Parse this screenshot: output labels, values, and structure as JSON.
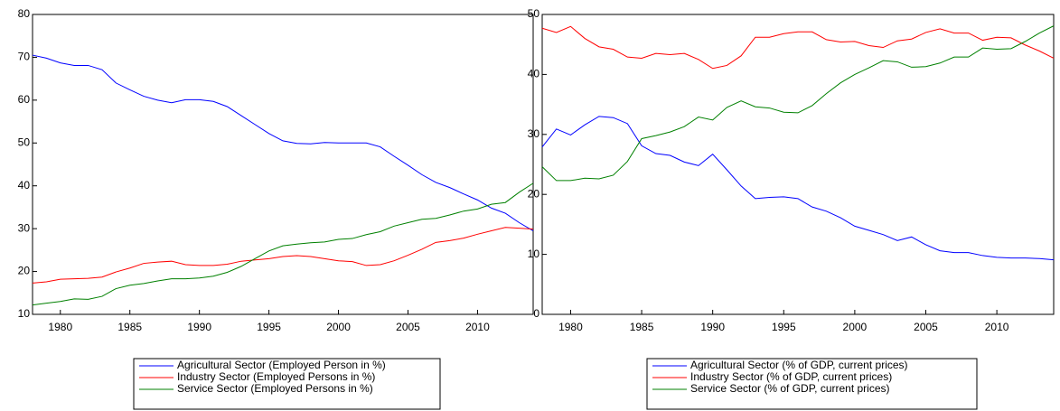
{
  "chart_data": [
    {
      "type": "line",
      "x": [
        1978,
        1979,
        1980,
        1981,
        1982,
        1983,
        1984,
        1985,
        1986,
        1987,
        1988,
        1989,
        1990,
        1991,
        1992,
        1993,
        1994,
        1995,
        1996,
        1997,
        1998,
        1999,
        2000,
        2001,
        2002,
        2003,
        2004,
        2005,
        2006,
        2007,
        2008,
        2009,
        2010,
        2011,
        2012,
        2013,
        2014
      ],
      "xlim": [
        1978,
        2014
      ],
      "xticks": [
        1980,
        1985,
        1990,
        1995,
        2000,
        2005,
        2010
      ],
      "ylim": [
        10,
        80
      ],
      "yticks": [
        10,
        20,
        30,
        40,
        50,
        60,
        70,
        80
      ],
      "series": [
        {
          "name": "Agricultural Sector (Employed Person in %)",
          "color": "#0000ff",
          "values": [
            70.5,
            69.8,
            68.7,
            68.1,
            68.1,
            67.1,
            64.0,
            62.4,
            60.9,
            60.0,
            59.4,
            60.1,
            60.1,
            59.7,
            58.5,
            56.4,
            54.3,
            52.2,
            50.5,
            49.9,
            49.8,
            50.1,
            50.0,
            50.0,
            50.0,
            49.1,
            46.9,
            44.8,
            42.6,
            40.8,
            39.6,
            38.1,
            36.7,
            34.8,
            33.6,
            31.4,
            29.5
          ]
        },
        {
          "name": "Industry Sector (Employed Persons in %)",
          "color": "#ff0000",
          "values": [
            17.3,
            17.6,
            18.2,
            18.3,
            18.4,
            18.7,
            19.9,
            20.8,
            21.9,
            22.2,
            22.4,
            21.6,
            21.4,
            21.4,
            21.7,
            22.4,
            22.7,
            23.0,
            23.5,
            23.7,
            23.5,
            23.0,
            22.5,
            22.3,
            21.4,
            21.6,
            22.5,
            23.8,
            25.2,
            26.8,
            27.2,
            27.8,
            28.7,
            29.5,
            30.3,
            30.1,
            29.9
          ]
        },
        {
          "name": "Service Sector (Employed Persons in %)",
          "color": "#008000",
          "values": [
            12.2,
            12.6,
            13.0,
            13.6,
            13.5,
            14.2,
            16.0,
            16.8,
            17.2,
            17.8,
            18.3,
            18.3,
            18.5,
            18.9,
            19.8,
            21.2,
            23.0,
            24.8,
            26.0,
            26.4,
            26.7,
            26.9,
            27.5,
            27.7,
            28.6,
            29.3,
            30.6,
            31.4,
            32.2,
            32.4,
            33.2,
            34.1,
            34.6,
            35.7,
            36.1,
            38.5,
            40.6
          ]
        }
      ]
    },
    {
      "type": "line",
      "x": [
        1978,
        1979,
        1980,
        1981,
        1982,
        1983,
        1984,
        1985,
        1986,
        1987,
        1988,
        1989,
        1990,
        1991,
        1992,
        1993,
        1994,
        1995,
        1996,
        1997,
        1998,
        1999,
        2000,
        2001,
        2002,
        2003,
        2004,
        2005,
        2006,
        2007,
        2008,
        2009,
        2010,
        2011,
        2012,
        2013,
        2014
      ],
      "xlim": [
        1978,
        2014
      ],
      "xticks": [
        1980,
        1985,
        1990,
        1995,
        2000,
        2005,
        2010
      ],
      "ylim": [
        0,
        50
      ],
      "yticks": [
        0,
        10,
        20,
        30,
        40,
        50
      ],
      "series": [
        {
          "name": "Agricultural Sector (% of GDP, current prices)",
          "color": "#0000ff",
          "values": [
            27.9,
            30.9,
            29.9,
            31.6,
            33.0,
            32.8,
            31.8,
            28.1,
            26.8,
            26.5,
            25.4,
            24.8,
            26.7,
            24.1,
            21.4,
            19.3,
            19.5,
            19.6,
            19.3,
            17.9,
            17.2,
            16.1,
            14.7,
            14.0,
            13.3,
            12.3,
            12.9,
            11.6,
            10.6,
            10.3,
            10.3,
            9.8,
            9.5,
            9.4,
            9.4,
            9.3,
            9.1
          ]
        },
        {
          "name": "Industry Sector (% of GDP, current prices)",
          "color": "#ff0000",
          "values": [
            47.7,
            47.0,
            48.0,
            46.0,
            44.6,
            44.2,
            42.9,
            42.7,
            43.5,
            43.3,
            43.5,
            42.5,
            41.0,
            41.5,
            43.1,
            46.2,
            46.2,
            46.8,
            47.1,
            47.1,
            45.8,
            45.4,
            45.5,
            44.8,
            44.5,
            45.6,
            45.9,
            47.0,
            47.6,
            46.9,
            46.9,
            45.7,
            46.2,
            46.1,
            44.9,
            43.9,
            42.7
          ]
        },
        {
          "name": "Service Sector (% of GDP, current prices)",
          "color": "#008000",
          "values": [
            24.6,
            22.3,
            22.3,
            22.7,
            22.6,
            23.2,
            25.5,
            29.3,
            29.8,
            30.4,
            31.3,
            32.9,
            32.4,
            34.5,
            35.6,
            34.6,
            34.4,
            33.7,
            33.6,
            34.8,
            36.8,
            38.6,
            40.0,
            41.1,
            42.3,
            42.1,
            41.2,
            41.3,
            41.9,
            42.9,
            42.9,
            44.4,
            44.2,
            44.3,
            45.5,
            46.9,
            48.1
          ]
        }
      ]
    }
  ]
}
